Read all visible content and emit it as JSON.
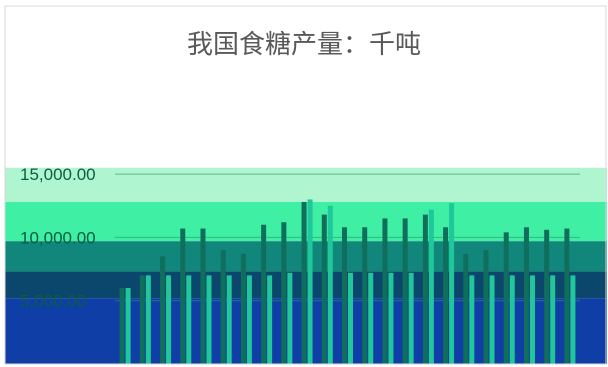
{
  "chart_data": {
    "type": "bar",
    "title": "我国食糖产量：千吨",
    "xlabel": "",
    "ylabel": "",
    "ylim": [
      0,
      16000
    ],
    "yticks": [
      "15,000.00",
      "10,000.00",
      "5,000.00"
    ],
    "tick_values": [
      15000,
      10000,
      5000
    ],
    "grid": true,
    "series": [
      {
        "values": [
          6000,
          7000,
          8500,
          10700,
          10700,
          9000,
          8700,
          11000,
          11200,
          12800,
          11800,
          10800,
          10800,
          11500,
          11500,
          11800,
          10800,
          8700,
          9000,
          10400,
          10800,
          10600,
          10700
        ]
      },
      {
        "values": [
          6000,
          7000,
          7000,
          7000,
          7000,
          7000,
          7000,
          7000,
          7200,
          13000,
          12500,
          7200,
          7200,
          7200,
          7200,
          12200,
          12700,
          7000,
          7000,
          7000,
          7000,
          7000,
          7000
        ]
      }
    ],
    "bands": [
      {
        "from": 12800,
        "to": 15500,
        "color": "#aef5d0"
      },
      {
        "from": 9700,
        "to": 12800,
        "color": "#3fefa4"
      },
      {
        "from": 7300,
        "to": 9700,
        "color": "#11877c"
      },
      {
        "from": 5200,
        "to": 7300,
        "color": "#0b476d"
      },
      {
        "from": 0,
        "to": 5200,
        "color": "#0f3fa6"
      }
    ]
  }
}
